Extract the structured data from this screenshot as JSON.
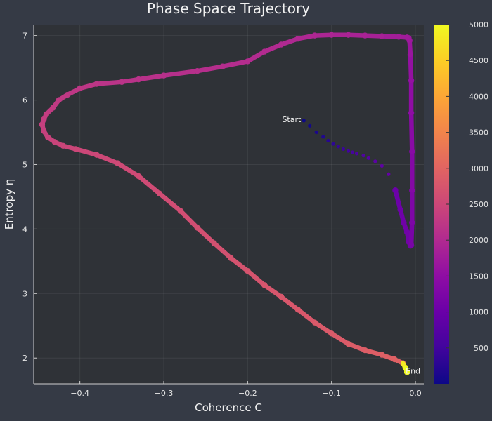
{
  "chart_data": {
    "type": "scatter",
    "title": "Phase Space Trajectory",
    "xlabel": "Coherence C",
    "ylabel": "Entropy η",
    "xlim": [
      -0.455,
      0.01
    ],
    "ylim": [
      1.6,
      7.17
    ],
    "xticks": [
      -0.4,
      -0.3,
      -0.2,
      -0.1,
      0.0
    ],
    "xtick_labels": [
      "−0.4",
      "−0.3",
      "−0.2",
      "−0.1",
      "0.0"
    ],
    "yticks": [
      2,
      3,
      4,
      5,
      6,
      7
    ],
    "ytick_labels": [
      "2",
      "3",
      "4",
      "5",
      "6",
      "7"
    ],
    "grid": true,
    "colorbar": {
      "colormap": "plasma",
      "range": [
        0,
        5000
      ],
      "ticks": [
        500,
        1000,
        1500,
        2000,
        2500,
        3000,
        3500,
        4000,
        4500,
        5000
      ],
      "tick_labels": [
        "500",
        "1000",
        "1500",
        "2000",
        "2500",
        "3000",
        "3500",
        "4000",
        "4500",
        "5000"
      ]
    },
    "annotations": [
      {
        "text": "Start",
        "x": -0.133,
        "y": 5.7
      },
      {
        "text": "End",
        "x": -0.01,
        "y": 1.8
      }
    ],
    "trajectory": {
      "x": [
        -0.133,
        -0.126,
        -0.118,
        -0.11,
        -0.104,
        -0.098,
        -0.092,
        -0.086,
        -0.08,
        -0.075,
        -0.07,
        -0.062,
        -0.056,
        -0.048,
        -0.04,
        -0.032,
        -0.024,
        -0.018,
        -0.014,
        -0.01,
        -0.008,
        -0.006,
        -0.005,
        -0.004,
        -0.004,
        -0.004,
        -0.005,
        -0.005,
        -0.006,
        -0.007,
        -0.008,
        -0.01,
        -0.02,
        -0.04,
        -0.06,
        -0.08,
        -0.1,
        -0.12,
        -0.14,
        -0.16,
        -0.18,
        -0.2,
        -0.23,
        -0.26,
        -0.3,
        -0.33,
        -0.35,
        -0.38,
        -0.4,
        -0.415,
        -0.425,
        -0.432,
        -0.44,
        -0.443,
        -0.445,
        -0.443,
        -0.438,
        -0.43,
        -0.42,
        -0.405,
        -0.38,
        -0.355,
        -0.33,
        -0.305,
        -0.28,
        -0.26,
        -0.24,
        -0.22,
        -0.2,
        -0.18,
        -0.16,
        -0.14,
        -0.12,
        -0.1,
        -0.08,
        -0.06,
        -0.04,
        -0.025,
        -0.015,
        -0.012,
        -0.01
      ],
      "y": [
        5.68,
        5.6,
        5.5,
        5.43,
        5.37,
        5.32,
        5.28,
        5.24,
        5.21,
        5.19,
        5.17,
        5.14,
        5.1,
        5.05,
        4.98,
        4.85,
        4.6,
        4.3,
        4.1,
        3.95,
        3.8,
        3.74,
        3.75,
        4.1,
        4.6,
        5.2,
        5.8,
        6.3,
        6.7,
        6.92,
        6.96,
        6.97,
        6.98,
        6.99,
        7.0,
        7.01,
        7.01,
        7.0,
        6.95,
        6.86,
        6.75,
        6.6,
        6.52,
        6.45,
        6.38,
        6.32,
        6.28,
        6.25,
        6.18,
        6.08,
        6.0,
        5.88,
        5.78,
        5.7,
        5.62,
        5.52,
        5.42,
        5.35,
        5.29,
        5.24,
        5.15,
        5.02,
        4.82,
        4.55,
        4.28,
        4.02,
        3.78,
        3.55,
        3.35,
        3.13,
        2.95,
        2.75,
        2.55,
        2.38,
        2.22,
        2.12,
        2.05,
        1.98,
        1.92,
        1.85,
        1.78
      ],
      "t": [
        0,
        62,
        125,
        187,
        250,
        312,
        375,
        437,
        500,
        562,
        625,
        687,
        750,
        812,
        875,
        937,
        1000,
        1025,
        1050,
        1075,
        1100,
        1125,
        1150,
        1200,
        1275,
        1350,
        1425,
        1500,
        1575,
        1650,
        1700,
        1725,
        1750,
        1800,
        1850,
        1875,
        1900,
        1925,
        1950,
        1975,
        2000,
        2025,
        2050,
        2075,
        2100,
        2125,
        2150,
        2175,
        2200,
        2225,
        2250,
        2275,
        2300,
        2325,
        2350,
        2375,
        2400,
        2425,
        2450,
        2475,
        2500,
        2525,
        2550,
        2575,
        2600,
        2625,
        2650,
        2675,
        2700,
        2725,
        2750,
        2775,
        2800,
        2825,
        2850,
        2875,
        2900,
        2925,
        2950,
        4800,
        5000
      ]
    }
  }
}
